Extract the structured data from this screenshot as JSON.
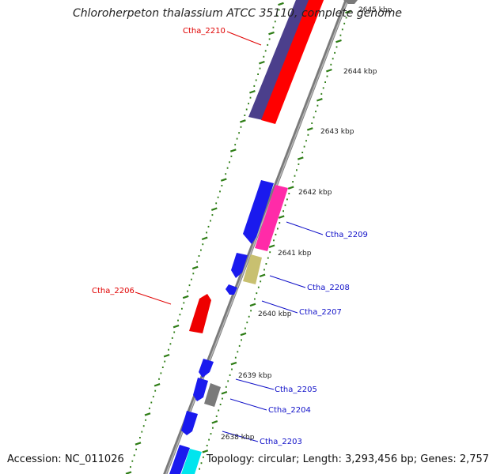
{
  "title": "Chloroherpeton thalassium ATCC 35110, complete genome",
  "accession": "Accession: NC_011026",
  "summary": "Topology: circular; Length: 3,293,456 bp; Genes: 2,757",
  "colors": {
    "backbone": "#888888",
    "tick": "#2e7d16",
    "plus_label": "#1010c8",
    "minus_label": "#e00000"
  },
  "kbp_ticks": [
    {
      "label": "2645 kbp"
    },
    {
      "label": "2644 kbp"
    },
    {
      "label": "2643 kbp"
    },
    {
      "label": "2642 kbp"
    },
    {
      "label": "2641 kbp"
    },
    {
      "label": "2640 kbp"
    },
    {
      "label": "2639 kbp"
    },
    {
      "label": "2638 kbp"
    }
  ],
  "gene_labels": [
    {
      "text": "Ctha_2210",
      "strand": "minus"
    },
    {
      "text": "Ctha_2209",
      "strand": "plus"
    },
    {
      "text": "Ctha_2208",
      "strand": "plus"
    },
    {
      "text": "Ctha_2206",
      "strand": "minus"
    },
    {
      "text": "Ctha_2207",
      "strand": "plus"
    },
    {
      "text": "Ctha_2205",
      "strand": "plus"
    },
    {
      "text": "Ctha_2204",
      "strand": "plus"
    },
    {
      "text": "Ctha_2203",
      "strand": "plus"
    }
  ]
}
